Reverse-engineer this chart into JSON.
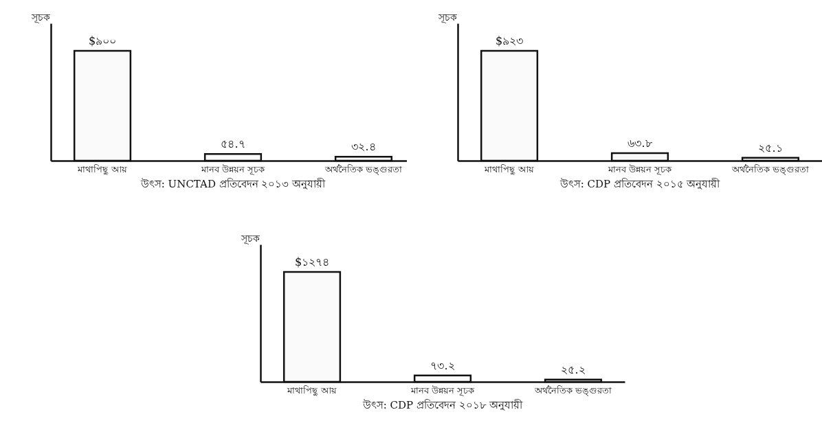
{
  "chart_data": [
    {
      "type": "bar",
      "ylabel": "সূচক",
      "categories": [
        "মাথাপিছু আয়",
        "মানব উন্নয়ন সূচক",
        "অর্থনৈতিক ভঙ্গুরতা"
      ],
      "values": [
        900,
        54.7,
        32.4
      ],
      "value_labels": [
        "$৯০০",
        "৫৪.৭",
        "৩২.৪"
      ],
      "color": "#fafafa",
      "annotations": [
        "উৎস: UNCTAD প্রতিবেদন ২০১৩ অনুযায়ী"
      ]
    },
    {
      "type": "bar",
      "ylabel": "সূচক",
      "categories": [
        "মাথাপিছু আয়",
        "মানব উন্নয়ন সূচক",
        "অর্থনৈতিক ভঙ্গুরতা"
      ],
      "values": [
        923,
        63.8,
        25.1
      ],
      "value_labels": [
        "$৯২৩",
        "৬৩.৮",
        "২৫.১"
      ],
      "color": "#fafafa",
      "annotations": [
        "উৎস: CDP প্রতিবেদন ২০১৫ অনুযায়ী"
      ]
    },
    {
      "type": "bar",
      "ylabel": "সূচক",
      "categories": [
        "মাথাপিছু আয়",
        "মানব উন্নয়ন সূচক",
        "অর্থনৈতিক ভঙ্গুরতা"
      ],
      "values": [
        1274,
        73.2,
        25.2
      ],
      "value_labels": [
        "$১২৭৪",
        "৭৩.২",
        "২৫.২"
      ],
      "color": "#fafafa",
      "annotations": [
        "উৎস: CDP প্রতিবেদন ২০১৮ অনুযায়ী"
      ]
    }
  ]
}
